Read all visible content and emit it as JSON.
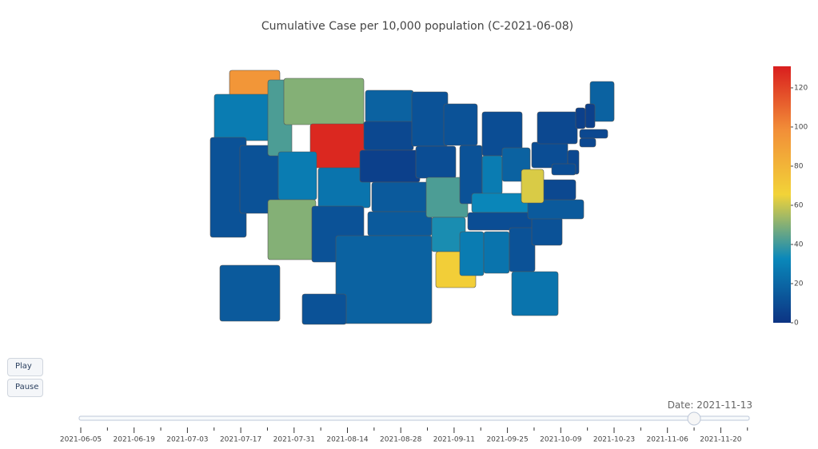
{
  "chart_data": {
    "type": "choropleth",
    "title": "Cumulative Case per 10,000 population (C-2021-06-08)",
    "values": [
      95,
      28,
      12,
      12,
      42,
      50,
      128,
      28,
      50,
      25,
      12,
      18,
      8,
      5,
      15,
      15,
      18,
      12,
      10,
      42,
      35,
      68,
      12,
      12,
      10,
      28,
      18,
      32,
      10,
      28,
      25,
      12,
      25,
      12,
      15,
      8,
      62,
      10,
      8,
      18,
      5,
      5,
      8,
      8,
      8,
      10,
      15,
      12
    ],
    "colorscale": [
      "#0c3383",
      "#0a88ba",
      "#f2d338",
      "#f28f38",
      "#d91e1e"
    ],
    "zlim": [
      0,
      131
    ],
    "zticks": [
      0,
      20,
      40,
      60,
      80,
      100,
      120
    ]
  },
  "controls": {
    "play": "Play",
    "pause": "Pause"
  },
  "slider": {
    "prefix": "Date:",
    "current": "2021-11-13",
    "ticks": [
      "2021-06-05",
      "2021-06-19",
      "2021-07-03",
      "2021-07-17",
      "2021-07-31",
      "2021-08-14",
      "2021-08-28",
      "2021-09-11",
      "2021-09-25",
      "2021-10-09",
      "2021-10-23",
      "2021-11-06",
      "2021-11-20"
    ]
  }
}
